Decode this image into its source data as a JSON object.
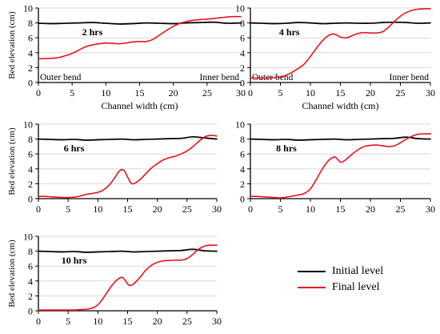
{
  "figure": {
    "ylabel": "Bed elevation (cm)",
    "xlabel": "Channel width (cm)",
    "outer_bend_label": "Outer bend",
    "inner_bend_label": "Inner bend",
    "colors": {
      "initial": "#000000",
      "final": "#e8141b",
      "grid": "#d9d9d9",
      "axis": "#000000"
    }
  },
  "legend": {
    "items": [
      {
        "label": "Initial level",
        "color": "#000000"
      },
      {
        "label": "Final level",
        "color": "#e8141b"
      }
    ],
    "placement": "bottom-right"
  },
  "chart_data": [
    {
      "type": "line",
      "title": "2 hrs",
      "xlabel": "Channel width (cm)",
      "ylabel": "Bed elevation (cm)",
      "xlim": [
        0,
        30
      ],
      "ylim": [
        0,
        10
      ],
      "xticks": [
        0,
        5,
        10,
        15,
        20,
        25,
        30
      ],
      "yticks": [
        0,
        2,
        4,
        6,
        8,
        10
      ],
      "grid": "horizontal",
      "annotations": [
        "Outer bend",
        "Inner bend"
      ],
      "series": [
        {
          "name": "Initial level",
          "x": [
            0,
            2,
            4,
            6,
            8,
            10,
            12,
            14,
            16,
            18,
            20,
            22,
            24,
            26,
            28,
            30
          ],
          "y": [
            7.95,
            7.9,
            7.95,
            8.0,
            8.05,
            7.95,
            7.85,
            7.9,
            8.0,
            7.95,
            7.9,
            8.0,
            8.05,
            8.1,
            7.95,
            8.0
          ]
        },
        {
          "name": "Final level",
          "x": [
            0,
            1,
            2,
            3,
            4,
            5,
            6,
            7,
            8,
            9,
            10,
            11,
            12,
            13,
            14,
            15,
            16,
            17,
            18,
            19,
            20,
            21,
            22,
            23,
            24,
            25,
            26,
            27,
            28,
            29,
            30
          ],
          "y": [
            3.2,
            3.2,
            3.25,
            3.35,
            3.6,
            3.9,
            4.35,
            4.8,
            5.05,
            5.2,
            5.3,
            5.25,
            5.2,
            5.3,
            5.45,
            5.5,
            5.5,
            5.8,
            6.4,
            7.0,
            7.55,
            7.95,
            8.2,
            8.35,
            8.45,
            8.5,
            8.6,
            8.7,
            8.8,
            8.85,
            8.85
          ]
        }
      ]
    },
    {
      "type": "line",
      "title": "4 hrs",
      "xlabel": "Channel width (cm)",
      "ylabel": "",
      "xlim": [
        0,
        30
      ],
      "ylim": [
        0,
        10
      ],
      "xticks": [
        0,
        5,
        10,
        15,
        20,
        25,
        30
      ],
      "yticks": [
        0,
        2,
        4,
        6,
        8,
        10
      ],
      "grid": "horizontal",
      "annotations": [
        "Outer bend",
        "Inner bend"
      ],
      "series": [
        {
          "name": "Initial level",
          "x": [
            0,
            2,
            4,
            6,
            8,
            10,
            12,
            14,
            16,
            18,
            20,
            22,
            24,
            26,
            28,
            30
          ],
          "y": [
            8.0,
            7.95,
            7.9,
            7.95,
            8.05,
            8.0,
            7.9,
            7.95,
            8.0,
            7.95,
            7.95,
            8.05,
            8.1,
            8.05,
            7.95,
            8.0
          ]
        },
        {
          "name": "Final level",
          "x": [
            0,
            1,
            2,
            3,
            4,
            5,
            6,
            7,
            8,
            9,
            10,
            11,
            12,
            13,
            14,
            15,
            16,
            17,
            18,
            19,
            20,
            21,
            22,
            23,
            24,
            25,
            26,
            27,
            28,
            29,
            30
          ],
          "y": [
            0.6,
            0.6,
            0.6,
            0.6,
            0.65,
            0.75,
            1.0,
            1.4,
            1.9,
            2.5,
            3.5,
            4.6,
            5.6,
            6.3,
            6.5,
            6.1,
            6.0,
            6.3,
            6.6,
            6.7,
            6.65,
            6.65,
            6.8,
            7.4,
            8.2,
            8.9,
            9.4,
            9.7,
            9.85,
            9.9,
            9.9
          ]
        }
      ]
    },
    {
      "type": "line",
      "title": "6 hrs",
      "xlabel": "",
      "ylabel": "Bed elevation (cm)",
      "xlim": [
        0,
        30
      ],
      "ylim": [
        0,
        10
      ],
      "xticks": [
        0,
        5,
        10,
        15,
        20,
        25,
        30
      ],
      "yticks": [
        0,
        2,
        4,
        6,
        8,
        10
      ],
      "grid": "horizontal",
      "series": [
        {
          "name": "Initial level",
          "x": [
            0,
            2,
            4,
            6,
            8,
            10,
            12,
            14,
            16,
            18,
            20,
            22,
            24,
            26,
            28,
            30
          ],
          "y": [
            8.0,
            7.95,
            7.9,
            7.95,
            7.85,
            7.9,
            7.95,
            8.0,
            7.9,
            7.95,
            8.0,
            8.05,
            8.1,
            8.3,
            8.15,
            8.0
          ]
        },
        {
          "name": "Final level",
          "x": [
            0,
            1,
            2,
            3,
            4,
            5,
            6,
            7,
            8,
            9,
            10,
            11,
            12,
            13,
            13.5,
            14,
            14.5,
            15,
            15.5,
            16,
            17,
            18,
            19,
            20,
            21,
            22,
            23,
            24,
            25,
            26,
            27,
            28,
            29,
            30
          ],
          "y": [
            0.3,
            0.3,
            0.25,
            0.2,
            0.15,
            0.15,
            0.2,
            0.35,
            0.55,
            0.7,
            0.85,
            1.2,
            1.9,
            3.0,
            3.6,
            3.9,
            3.7,
            2.9,
            2.15,
            2.0,
            2.5,
            3.3,
            4.1,
            4.7,
            5.2,
            5.5,
            5.7,
            6.0,
            6.4,
            7.0,
            7.7,
            8.3,
            8.5,
            8.4
          ]
        }
      ]
    },
    {
      "type": "line",
      "title": "8 hrs",
      "xlabel": "",
      "ylabel": "",
      "xlim": [
        0,
        30
      ],
      "ylim": [
        0,
        10
      ],
      "xticks": [
        0,
        5,
        10,
        15,
        20,
        25,
        30
      ],
      "yticks": [
        0,
        2,
        4,
        6,
        8,
        10
      ],
      "grid": "horizontal",
      "series": [
        {
          "name": "Initial level",
          "x": [
            0,
            2,
            4,
            6,
            8,
            10,
            12,
            14,
            16,
            18,
            20,
            22,
            24,
            26,
            28,
            30
          ],
          "y": [
            8.0,
            7.95,
            7.9,
            7.95,
            7.85,
            7.9,
            7.95,
            8.0,
            7.9,
            7.95,
            8.0,
            8.05,
            8.1,
            8.25,
            8.05,
            8.0
          ]
        },
        {
          "name": "Final level",
          "x": [
            0,
            1,
            2,
            3,
            4,
            5,
            6,
            7,
            8,
            9,
            10,
            11,
            12,
            13,
            14,
            14.5,
            15,
            15.5,
            16,
            17,
            18,
            19,
            20,
            21,
            22,
            23,
            24,
            25,
            26,
            27,
            28,
            29,
            30
          ],
          "y": [
            0.3,
            0.3,
            0.25,
            0.2,
            0.15,
            0.1,
            0.2,
            0.35,
            0.5,
            0.7,
            1.3,
            2.6,
            4.0,
            5.1,
            5.6,
            5.3,
            4.9,
            5.0,
            5.3,
            6.0,
            6.6,
            7.0,
            7.15,
            7.2,
            7.1,
            7.0,
            7.1,
            7.5,
            8.0,
            8.4,
            8.65,
            8.7,
            8.7
          ]
        }
      ]
    },
    {
      "type": "line",
      "title": "10 hrs",
      "xlabel": "",
      "ylabel": "Bed elevation (cm)",
      "xlim": [
        0,
        30
      ],
      "ylim": [
        0,
        10
      ],
      "xticks": [
        0,
        5,
        10,
        15,
        20,
        25,
        30
      ],
      "yticks": [
        0,
        2,
        4,
        6,
        8,
        10
      ],
      "grid": "horizontal",
      "series": [
        {
          "name": "Initial level",
          "x": [
            0,
            2,
            4,
            6,
            8,
            10,
            12,
            14,
            16,
            18,
            20,
            22,
            24,
            26,
            28,
            30
          ],
          "y": [
            8.0,
            7.95,
            7.9,
            7.95,
            7.85,
            7.9,
            7.95,
            8.0,
            7.9,
            7.95,
            8.0,
            8.05,
            8.1,
            8.25,
            8.05,
            8.0
          ]
        },
        {
          "name": "Final level",
          "x": [
            0,
            1,
            2,
            3,
            4,
            5,
            6,
            7,
            8,
            9,
            10,
            11,
            12,
            13,
            14,
            14.5,
            15,
            15.5,
            16,
            17,
            18,
            19,
            20,
            21,
            22,
            23,
            24,
            25,
            26,
            27,
            28,
            29,
            30
          ],
          "y": [
            0.1,
            0.1,
            0.1,
            0.1,
            0.1,
            0.1,
            0.1,
            0.15,
            0.2,
            0.35,
            0.8,
            1.8,
            3.0,
            4.0,
            4.5,
            4.2,
            3.6,
            3.4,
            3.6,
            4.4,
            5.4,
            6.1,
            6.5,
            6.7,
            6.75,
            6.8,
            6.8,
            7.0,
            7.6,
            8.3,
            8.7,
            8.8,
            8.8
          ]
        }
      ]
    }
  ]
}
